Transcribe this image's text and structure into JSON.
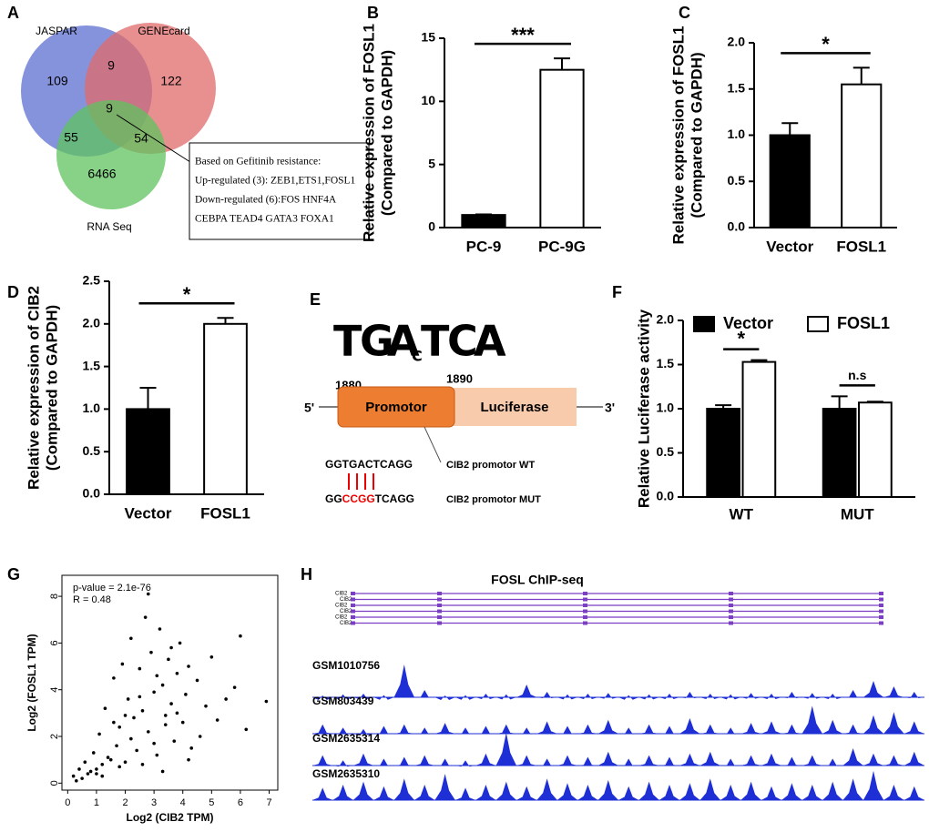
{
  "chart_data": [
    {
      "type": "venn",
      "panel": "A",
      "sets": [
        "JASPAR",
        "GENEcard",
        "RNA Seq"
      ],
      "colors": [
        "#5b6fd0",
        "#e06b6b",
        "#5fc35f"
      ],
      "regions": {
        "jaspar_only": 109,
        "genecard_only": 122,
        "rnaseq_only": 6466,
        "jaspar_genecard": 9,
        "jaspar_rnaseq": 55,
        "genecard_rnaseq": 54,
        "all": 9
      },
      "annotation": [
        "Based on Gefitinib resistance:",
        "Up-regulated (3): ZEB1,ETS1,FOSL1",
        "Down-regulated (6):FOS HNF4A",
        "CEBPA  TEAD4 GATA3 FOXA1"
      ]
    },
    {
      "type": "bar",
      "panel": "B",
      "ylabel": [
        "Relative expression of FOSL1",
        "(Compared to GAPDH)"
      ],
      "categories": [
        "PC-9",
        "PC-9G"
      ],
      "values": [
        1.0,
        12.5
      ],
      "errors": [
        0.05,
        0.9
      ],
      "colors": [
        "#000000",
        "#ffffff"
      ],
      "ylim": [
        0,
        15
      ],
      "yticks": [
        0,
        5,
        10,
        15
      ],
      "significance": "***"
    },
    {
      "type": "bar",
      "panel": "C",
      "ylabel": [
        "Relative expression of FOSL1",
        "(Compared to GAPDH)"
      ],
      "categories": [
        "Vector",
        "FOSL1"
      ],
      "values": [
        1.0,
        1.55
      ],
      "errors": [
        0.13,
        0.18
      ],
      "colors": [
        "#000000",
        "#ffffff"
      ],
      "ylim": [
        0,
        2.0
      ],
      "yticks": [
        {
          "value": 0,
          "label": "0.0"
        },
        {
          "value": 0.5,
          "label": "0.5"
        },
        {
          "value": 1,
          "label": "1.0"
        },
        {
          "value": 1.5,
          "label": "1.5"
        },
        {
          "value": 2,
          "label": "2.0"
        }
      ],
      "significance": "*"
    },
    {
      "type": "bar",
      "panel": "D",
      "ylabel": [
        "Relative expression of CIB2",
        "(Compared to GAPDH)"
      ],
      "categories": [
        "Vector",
        "FOSL1"
      ],
      "values": [
        1.0,
        2.0
      ],
      "errors": [
        0.25,
        0.07
      ],
      "colors": [
        "#000000",
        "#ffffff"
      ],
      "ylim": [
        0,
        2.5
      ],
      "yticks": [
        {
          "value": 0,
          "label": "0.0"
        },
        {
          "value": 0.5,
          "label": "0.5"
        },
        {
          "value": 1,
          "label": "1.0"
        },
        {
          "value": 1.5,
          "label": "1.5"
        },
        {
          "value": 2,
          "label": "2.0"
        },
        {
          "value": 2.5,
          "label": "2.5"
        }
      ],
      "significance": "*"
    },
    {
      "type": "grouped-bar",
      "panel": "F",
      "ylabel": "Relative Luciferase activity",
      "categories": [
        "WT",
        "MUT"
      ],
      "series": [
        {
          "name": "Vector",
          "color": "#000000",
          "values": [
            1.0,
            1.0
          ],
          "errors": [
            0.04,
            0.14
          ]
        },
        {
          "name": "FOSL1",
          "color": "#ffffff",
          "values": [
            1.53,
            1.07
          ],
          "errors": [
            0.02,
            0.01
          ]
        }
      ],
      "ylim": [
        0,
        2.0
      ],
      "yticks": [
        {
          "value": 0,
          "label": "0.0"
        },
        {
          "value": 0.5,
          "label": "0.5"
        },
        {
          "value": 1,
          "label": "1.0"
        },
        {
          "value": 1.5,
          "label": "1.5"
        },
        {
          "value": 2,
          "label": "2.0"
        }
      ],
      "significance": [
        "*",
        "n.s"
      ],
      "legend": "top"
    },
    {
      "type": "scatter",
      "panel": "G",
      "xlabel": "Log2 (CIB2 TPM)",
      "ylabel": "Log2 (FOSL1 TPM)",
      "annotations": [
        "p-value = 2.1e-76",
        "R = 0.48"
      ],
      "color": "#000000",
      "x": [
        0.2,
        0.4,
        0.5,
        0.6,
        0.8,
        0.9,
        1.0,
        1.1,
        1.2,
        1.3,
        1.5,
        1.6,
        1.7,
        1.8,
        1.9,
        2.0,
        2.1,
        2.2,
        2.3,
        2.4,
        2.5,
        2.6,
        2.7,
        2.8,
        2.9,
        3.0,
        3.1,
        3.2,
        3.3,
        3.4,
        3.5,
        3.6,
        3.7,
        3.8,
        3.9,
        4.0,
        4.1,
        4.2,
        4.3,
        4.5,
        4.6,
        4.8,
        5.0,
        5.2,
        5.5,
        5.8,
        6.0,
        6.2,
        6.9,
        0.3,
        0.7,
        1.0,
        1.4,
        1.8,
        2.2,
        2.6,
        3.0,
        3.4,
        3.8,
        4.2,
        2.0,
        2.5,
        3.1,
        3.6,
        1.2,
        1.6,
        2.8,
        3.3
      ],
      "y": [
        0.3,
        0.6,
        0.2,
        0.9,
        0.5,
        1.3,
        0.4,
        2.1,
        0.8,
        3.2,
        1.0,
        4.5,
        1.6,
        2.4,
        5.1,
        0.9,
        3.6,
        6.2,
        2.8,
        1.4,
        4.9,
        3.1,
        7.1,
        2.2,
        5.6,
        3.9,
        1.2,
        6.6,
        4.2,
        2.9,
        5.3,
        3.4,
        1.8,
        4.7,
        6.0,
        2.6,
        3.8,
        5.0,
        1.5,
        4.4,
        2.0,
        3.3,
        5.4,
        2.7,
        3.6,
        4.1,
        6.3,
        2.3,
        3.5,
        0.1,
        0.4,
        0.6,
        1.1,
        0.7,
        1.9,
        0.8,
        1.7,
        2.5,
        3.0,
        1.0,
        2.9,
        3.7,
        4.6,
        5.8,
        0.3,
        2.6,
        8.1,
        0.5
      ],
      "xlim": [
        -0.2,
        7.3
      ],
      "ylim": [
        -0.3,
        8.9
      ],
      "xticks": [
        0,
        1,
        2,
        3,
        4,
        5,
        6,
        7
      ],
      "yticks": [
        0,
        2,
        4,
        6,
        8
      ]
    },
    {
      "type": "tracks",
      "panel": "H",
      "title": "FOSL ChIP-seq",
      "gene_label": "CIB2",
      "color": "#1f2fd6",
      "series": [
        {
          "name": "GSM1010756",
          "values": [
            0.05,
            0.08,
            0.1,
            0.06,
            0.9,
            0.2,
            0.05,
            0.06,
            0.1,
            0.08,
            0.35,
            0.15,
            0.08,
            0.1,
            0.12,
            0.06,
            0.08,
            0.1,
            0.15,
            0.1,
            0.08,
            0.12,
            0.1,
            0.15,
            0.12,
            0.1,
            0.2,
            0.45,
            0.3,
            0.15
          ]
        },
        {
          "name": "GSM803439",
          "values": [
            0.3,
            0.2,
            0.15,
            0.25,
            0.3,
            0.2,
            0.35,
            0.2,
            0.25,
            0.3,
            0.2,
            0.4,
            0.25,
            0.3,
            0.45,
            0.2,
            0.3,
            0.25,
            0.5,
            0.3,
            0.2,
            0.35,
            0.4,
            0.3,
            0.9,
            0.45,
            0.3,
            0.6,
            0.7,
            0.4
          ]
        },
        {
          "name": "GSM2635314",
          "values": [
            0.3,
            0.15,
            0.35,
            0.2,
            0.25,
            0.3,
            0.2,
            0.15,
            0.35,
            0.95,
            0.3,
            0.2,
            0.3,
            0.25,
            0.4,
            0.2,
            0.3,
            0.25,
            0.35,
            0.4,
            0.2,
            0.3,
            0.35,
            0.25,
            0.3,
            0.2,
            0.5,
            0.35,
            0.3,
            0.4
          ]
        },
        {
          "name": "GSM2635310",
          "values": [
            0.4,
            0.5,
            0.6,
            0.45,
            0.7,
            0.5,
            0.85,
            0.4,
            0.5,
            0.6,
            0.45,
            0.7,
            0.55,
            0.5,
            0.65,
            0.45,
            0.6,
            0.5,
            0.55,
            0.7,
            0.5,
            0.6,
            0.45,
            0.55,
            0.5,
            0.6,
            0.7,
            0.95,
            0.5,
            0.45
          ]
        }
      ]
    }
  ],
  "diagram": {
    "panel": "E",
    "motif": [
      "T",
      "G",
      "A",
      "C",
      "T",
      "C",
      "A"
    ],
    "positions": [
      "1880",
      "1890"
    ],
    "ends": [
      "5'",
      "3'"
    ],
    "boxes": [
      "Promotor",
      "Luciferase"
    ],
    "wt_sequence": "GGTGACTCAGG",
    "wt_label": "CIB2 promotor WT",
    "mut_sequence": [
      "GG",
      "CCGG",
      "TCAGG"
    ],
    "mut_label": "CIB2 promotor MUT"
  }
}
